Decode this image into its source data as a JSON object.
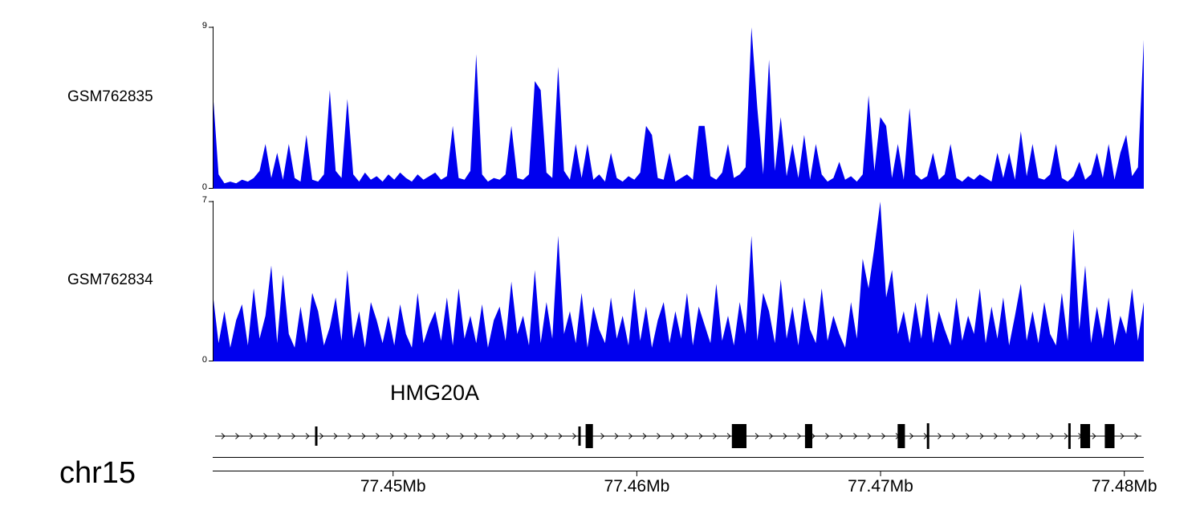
{
  "chart_data": {
    "type": "area",
    "layout": "genome-browser-coverage",
    "chromosome": "chr15",
    "x_range_mb": [
      77.4426,
      77.4808
    ],
    "x_ticks_mb": [
      77.45,
      77.46,
      77.47,
      77.48
    ],
    "x_tick_labels": [
      "77.45Mb",
      "77.46Mb",
      "77.47Mb",
      "77.48Mb"
    ],
    "tracks": [
      {
        "name": "GSM762835",
        "type": "coverage",
        "color": "#0000EE",
        "ylim": [
          0,
          9
        ],
        "values": [
          5.5,
          0.8,
          0.3,
          0.4,
          0.3,
          0.5,
          0.4,
          0.6,
          1.0,
          2.5,
          0.6,
          2.0,
          0.5,
          2.5,
          0.6,
          0.4,
          3.0,
          0.5,
          0.4,
          0.8,
          5.5,
          1.0,
          0.6,
          5.0,
          0.8,
          0.4,
          0.9,
          0.5,
          0.7,
          0.4,
          0.8,
          0.5,
          0.9,
          0.6,
          0.4,
          0.8,
          0.5,
          0.7,
          0.9,
          0.5,
          0.7,
          3.5,
          0.6,
          0.5,
          1.0,
          7.5,
          0.8,
          0.4,
          0.6,
          0.5,
          0.8,
          3.5,
          0.6,
          0.5,
          0.8,
          6.0,
          5.5,
          0.9,
          0.6,
          6.8,
          1.0,
          0.5,
          2.5,
          0.6,
          2.5,
          0.5,
          0.8,
          0.4,
          2.0,
          0.6,
          0.4,
          0.7,
          0.5,
          0.9,
          3.5,
          3.0,
          0.6,
          0.5,
          2.0,
          0.4,
          0.6,
          0.8,
          0.5,
          3.5,
          3.5,
          0.7,
          0.5,
          0.9,
          2.5,
          0.6,
          0.8,
          1.2,
          9.0,
          4.5,
          0.8,
          7.2,
          1.0,
          4.0,
          0.7,
          2.5,
          0.6,
          3.0,
          0.5,
          2.5,
          0.8,
          0.4,
          0.6,
          1.5,
          0.5,
          0.7,
          0.4,
          0.8,
          5.2,
          1.0,
          4.0,
          3.5,
          0.6,
          2.5,
          0.5,
          4.5,
          0.8,
          0.5,
          0.7,
          2.0,
          0.5,
          0.8,
          2.5,
          0.6,
          0.4,
          0.7,
          0.5,
          0.8,
          0.6,
          0.4,
          2.0,
          0.6,
          2.0,
          0.5,
          3.2,
          0.7,
          2.5,
          0.6,
          0.5,
          0.8,
          2.5,
          0.6,
          0.4,
          0.7,
          1.5,
          0.5,
          0.8,
          2.0,
          0.6,
          2.5,
          0.5,
          2.0,
          3.0,
          0.7,
          1.2,
          8.3
        ]
      },
      {
        "name": "GSM762834",
        "type": "coverage",
        "color": "#0000EE",
        "ylim": [
          0,
          7
        ],
        "values": [
          3.0,
          0.8,
          2.2,
          0.6,
          1.8,
          2.5,
          0.7,
          3.2,
          1.0,
          2.0,
          4.2,
          0.8,
          3.8,
          1.2,
          0.6,
          2.4,
          0.8,
          3.0,
          2.2,
          0.7,
          1.5,
          2.8,
          0.9,
          4.0,
          1.0,
          2.2,
          0.6,
          2.6,
          1.8,
          0.8,
          2.0,
          0.7,
          2.5,
          1.2,
          0.6,
          3.0,
          0.8,
          1.6,
          2.2,
          0.9,
          2.8,
          0.7,
          3.2,
          1.0,
          2.0,
          0.8,
          2.5,
          0.6,
          1.8,
          2.4,
          0.9,
          3.5,
          1.2,
          2.0,
          0.7,
          4.0,
          0.8,
          2.6,
          1.0,
          5.5,
          1.2,
          2.2,
          0.8,
          3.0,
          0.6,
          2.4,
          1.4,
          0.8,
          2.8,
          1.0,
          2.0,
          0.7,
          3.2,
          0.9,
          2.4,
          0.6,
          1.8,
          2.6,
          0.8,
          2.2,
          1.0,
          3.0,
          0.7,
          2.4,
          1.6,
          0.8,
          3.4,
          0.9,
          2.0,
          0.7,
          2.6,
          1.2,
          5.5,
          0.9,
          3.0,
          2.2,
          0.8,
          3.6,
          1.0,
          2.4,
          0.7,
          2.8,
          1.4,
          0.8,
          3.2,
          0.9,
          2.0,
          1.2,
          0.6,
          2.6,
          1.0,
          4.5,
          3.2,
          5.0,
          7.0,
          2.8,
          4.0,
          1.2,
          2.2,
          0.8,
          2.6,
          1.0,
          3.0,
          0.8,
          2.2,
          1.4,
          0.7,
          2.8,
          0.9,
          2.0,
          1.2,
          3.2,
          0.8,
          2.4,
          1.0,
          2.8,
          0.7,
          2.0,
          3.4,
          0.9,
          2.2,
          0.8,
          2.6,
          1.2,
          0.7,
          3.0,
          0.9,
          5.8,
          1.4,
          4.2,
          0.8,
          2.4,
          1.0,
          2.8,
          0.7,
          2.0,
          1.2,
          3.2,
          0.9,
          2.6
        ]
      }
    ],
    "gene_track": {
      "gene_name": "HMG20A",
      "strand": "+",
      "line_start_mb": 77.4427,
      "line_end_mb": 77.4807,
      "exons": [
        {
          "start": 77.4468,
          "end": 77.4469,
          "type": "thin"
        },
        {
          "start": 77.4576,
          "end": 77.4577,
          "type": "thin"
        },
        {
          "start": 77.4579,
          "end": 77.4582,
          "type": "thick"
        },
        {
          "start": 77.4639,
          "end": 77.4645,
          "type": "thick"
        },
        {
          "start": 77.4669,
          "end": 77.4672,
          "type": "thick"
        },
        {
          "start": 77.4707,
          "end": 77.471,
          "type": "thick"
        },
        {
          "start": 77.4719,
          "end": 77.472,
          "type": "line"
        },
        {
          "start": 77.4777,
          "end": 77.4778,
          "type": "line"
        },
        {
          "start": 77.4782,
          "end": 77.4786,
          "type": "thick"
        },
        {
          "start": 77.4792,
          "end": 77.4796,
          "type": "thick"
        }
      ]
    }
  }
}
